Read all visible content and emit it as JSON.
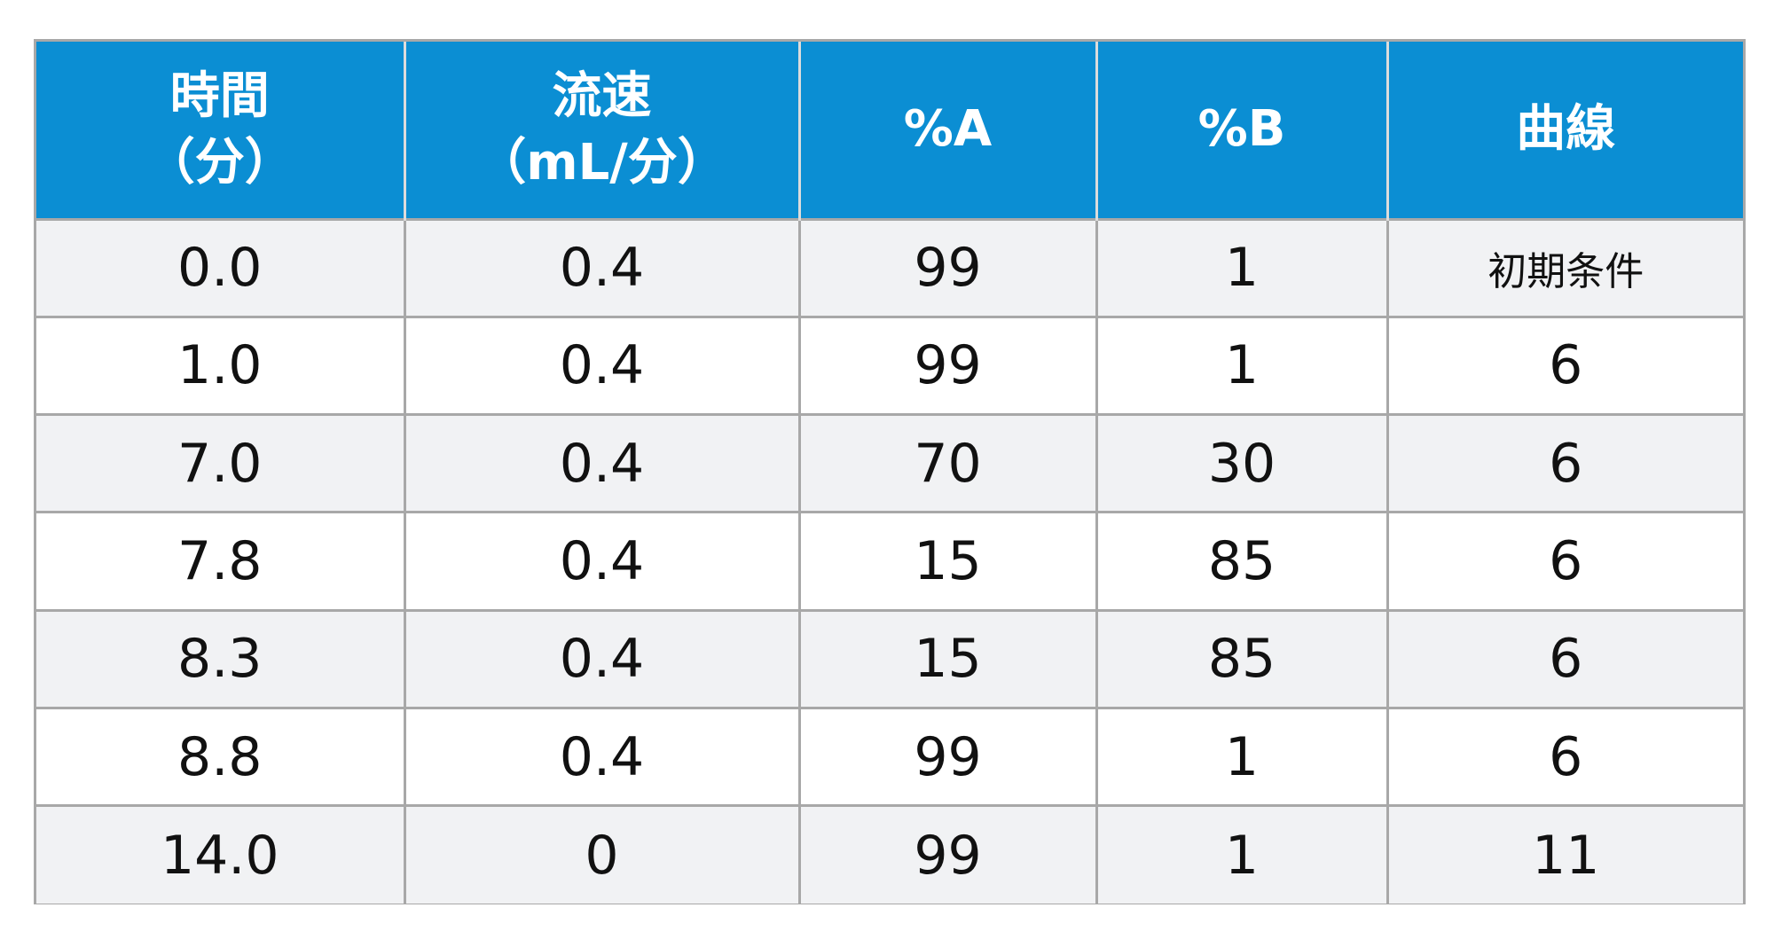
{
  "table": {
    "headers": [
      {
        "lines": [
          "時間",
          "（分）"
        ]
      },
      {
        "lines": [
          "流速",
          "（mL/分）"
        ]
      },
      {
        "lines": [
          "%A"
        ]
      },
      {
        "lines": [
          "%B"
        ]
      },
      {
        "lines": [
          "曲線"
        ]
      }
    ],
    "rows": [
      [
        "0.0",
        "0.4",
        "99",
        "1",
        "初期条件"
      ],
      [
        "1.0",
        "0.4",
        "99",
        "1",
        "6"
      ],
      [
        "7.0",
        "0.4",
        "70",
        "30",
        "6"
      ],
      [
        "7.8",
        "0.4",
        "15",
        "85",
        "6"
      ],
      [
        "8.3",
        "0.4",
        "15",
        "85",
        "6"
      ],
      [
        "8.8",
        "0.4",
        "99",
        "1",
        "6"
      ],
      [
        "14.0",
        "0",
        "99",
        "1",
        "11"
      ]
    ]
  },
  "colors": {
    "header_bg": "#0b8ed3",
    "header_text": "#ffffff",
    "row_alt_bg": "#f1f2f4",
    "grid_line": "#a8a8a8"
  }
}
